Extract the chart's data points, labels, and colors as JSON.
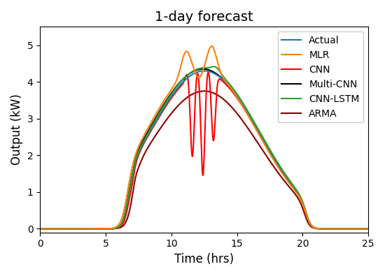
{
  "title": "1-day forecast",
  "xlabel": "Time (hrs)",
  "ylabel": "Output (kW)",
  "xlim": [
    0,
    25
  ],
  "ylim": [
    -0.1,
    5.5
  ],
  "xticks": [
    0,
    5,
    10,
    15,
    20,
    25
  ],
  "yticks": [
    0,
    1,
    2,
    3,
    4,
    5
  ],
  "legend_labels": [
    "Actual",
    "MLR",
    "CNN",
    "Multi-CNN",
    "CNN-LSTM",
    "ARMA"
  ],
  "line_colors": [
    "#1f77b4",
    "#ff7f0e",
    "#ff0000",
    "#000000",
    "#2ca02c",
    "#8b0000"
  ],
  "line_widths": [
    1.5,
    1.5,
    1.5,
    1.5,
    1.5,
    1.5
  ],
  "figsize": [
    5.5,
    3.95
  ],
  "dpi": 100
}
